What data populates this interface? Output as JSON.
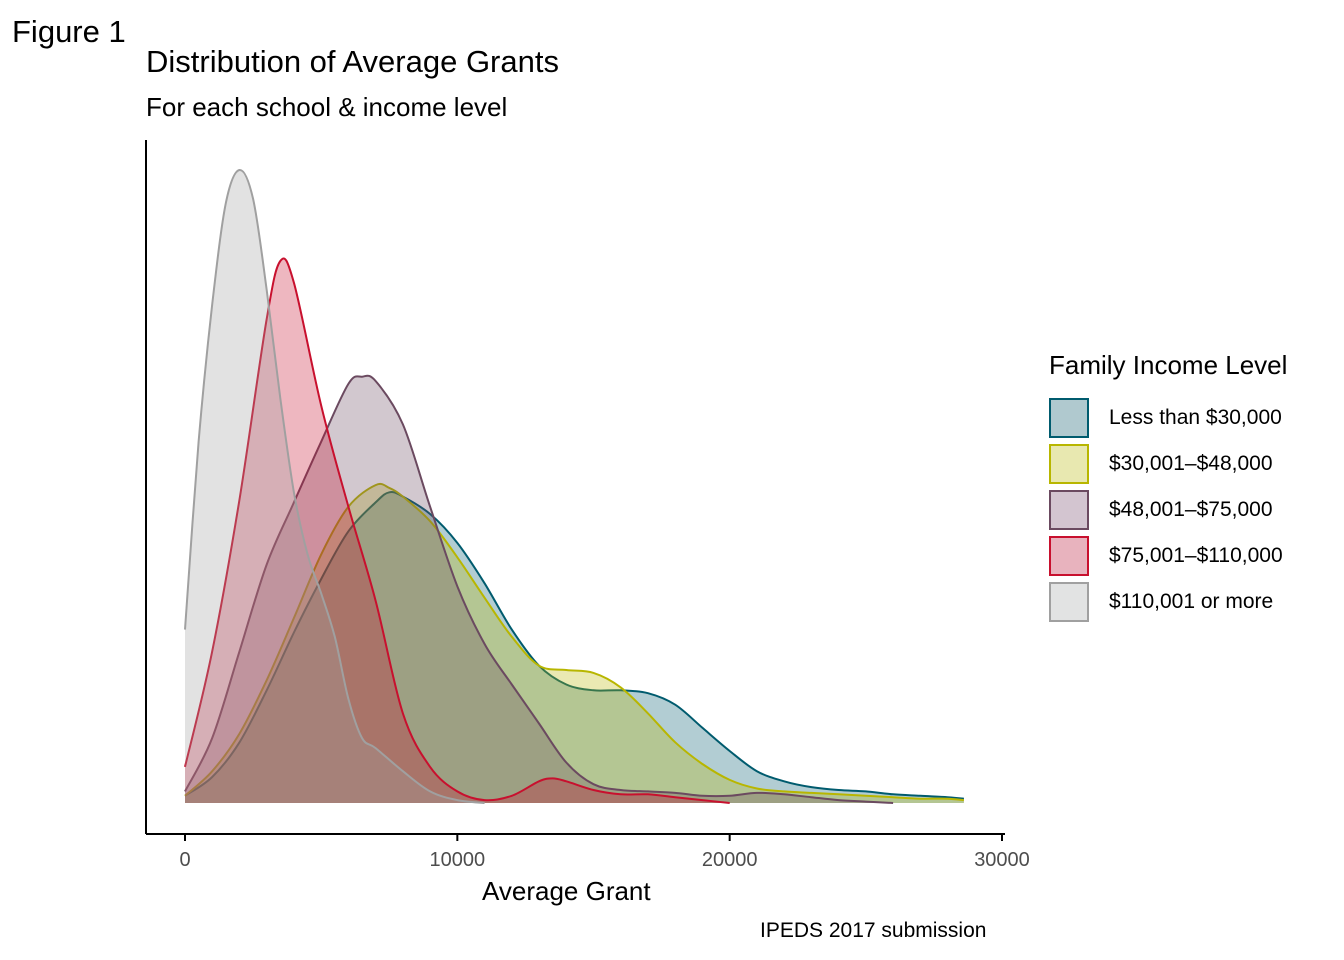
{
  "figure_label": "Figure 1",
  "chart_data": {
    "type": "area",
    "title": "Distribution of Average Grants",
    "subtitle": "For each school & income level",
    "xlabel": "Average Grant",
    "ylabel": "",
    "caption": "IPEDS 2017 submission",
    "xlim": [
      0,
      30000
    ],
    "xticks": [
      "0",
      "10000",
      "20000",
      "30000"
    ],
    "grid": false,
    "legend_title": "Family Income Level",
    "legend_position": "right",
    "series": [
      {
        "name": "Less than $30,000",
        "color": "#005b6e",
        "fill": "#b0c9cf",
        "points": [
          [
            0,
            0.05
          ],
          [
            1000,
            0.18
          ],
          [
            2000,
            0.42
          ],
          [
            3000,
            0.78
          ],
          [
            4000,
            1.18
          ],
          [
            5000,
            1.55
          ],
          [
            6000,
            1.88
          ],
          [
            7000,
            2.08
          ],
          [
            7500,
            2.15
          ],
          [
            8000,
            2.12
          ],
          [
            9000,
            2.0
          ],
          [
            10000,
            1.8
          ],
          [
            11000,
            1.52
          ],
          [
            12000,
            1.2
          ],
          [
            13000,
            0.95
          ],
          [
            14000,
            0.82
          ],
          [
            15000,
            0.78
          ],
          [
            16000,
            0.78
          ],
          [
            17000,
            0.76
          ],
          [
            18000,
            0.68
          ],
          [
            19000,
            0.52
          ],
          [
            20000,
            0.36
          ],
          [
            21000,
            0.22
          ],
          [
            22000,
            0.15
          ],
          [
            23000,
            0.11
          ],
          [
            24000,
            0.09
          ],
          [
            25000,
            0.08
          ],
          [
            26000,
            0.06
          ],
          [
            27000,
            0.05
          ],
          [
            28000,
            0.04
          ],
          [
            28600,
            0.03
          ]
        ]
      },
      {
        "name": "$30,001–$48,000",
        "color": "#b8b600",
        "fill": "#e8e8b0",
        "points": [
          [
            0,
            0.05
          ],
          [
            1000,
            0.22
          ],
          [
            2000,
            0.48
          ],
          [
            3000,
            0.85
          ],
          [
            4000,
            1.28
          ],
          [
            5000,
            1.72
          ],
          [
            6000,
            2.05
          ],
          [
            7000,
            2.2
          ],
          [
            7500,
            2.18
          ],
          [
            8000,
            2.12
          ],
          [
            9000,
            1.95
          ],
          [
            10000,
            1.7
          ],
          [
            11000,
            1.42
          ],
          [
            12000,
            1.15
          ],
          [
            13000,
            0.95
          ],
          [
            14000,
            0.92
          ],
          [
            15000,
            0.9
          ],
          [
            16000,
            0.8
          ],
          [
            17000,
            0.62
          ],
          [
            18000,
            0.42
          ],
          [
            19000,
            0.27
          ],
          [
            20000,
            0.16
          ],
          [
            21000,
            0.1
          ],
          [
            22000,
            0.08
          ],
          [
            23000,
            0.07
          ],
          [
            24000,
            0.06
          ],
          [
            25000,
            0.05
          ],
          [
            26000,
            0.04
          ],
          [
            27000,
            0.03
          ],
          [
            28000,
            0.03
          ],
          [
            28600,
            0.02
          ]
        ]
      },
      {
        "name": "$48,001–$75,000",
        "color": "#6b4a60",
        "fill": "#d3c5d0",
        "points": [
          [
            0,
            0.08
          ],
          [
            1000,
            0.45
          ],
          [
            2000,
            1.05
          ],
          [
            3000,
            1.65
          ],
          [
            4000,
            2.08
          ],
          [
            5000,
            2.5
          ],
          [
            6000,
            2.9
          ],
          [
            6500,
            2.95
          ],
          [
            7000,
            2.92
          ],
          [
            8000,
            2.62
          ],
          [
            9000,
            2.05
          ],
          [
            10000,
            1.5
          ],
          [
            11000,
            1.1
          ],
          [
            12000,
            0.82
          ],
          [
            13000,
            0.55
          ],
          [
            14000,
            0.28
          ],
          [
            15000,
            0.13
          ],
          [
            16000,
            0.09
          ],
          [
            17000,
            0.08
          ],
          [
            18000,
            0.07
          ],
          [
            19000,
            0.05
          ],
          [
            20000,
            0.05
          ],
          [
            21000,
            0.07
          ],
          [
            22000,
            0.06
          ],
          [
            23000,
            0.04
          ],
          [
            24000,
            0.02
          ],
          [
            25000,
            0.01
          ],
          [
            26000,
            0.0
          ]
        ]
      },
      {
        "name": "$75,001–$110,000",
        "color": "#c8102e",
        "fill": "#e8b3be",
        "points": [
          [
            0,
            0.25
          ],
          [
            1000,
            1.05
          ],
          [
            2000,
            2.1
          ],
          [
            3000,
            3.35
          ],
          [
            3500,
            3.75
          ],
          [
            4000,
            3.6
          ],
          [
            5000,
            2.75
          ],
          [
            6000,
            2.05
          ],
          [
            7000,
            1.4
          ],
          [
            8000,
            0.62
          ],
          [
            9000,
            0.25
          ],
          [
            10000,
            0.08
          ],
          [
            11000,
            0.02
          ],
          [
            12000,
            0.05
          ],
          [
            13000,
            0.15
          ],
          [
            13500,
            0.17
          ],
          [
            14000,
            0.15
          ],
          [
            15000,
            0.09
          ],
          [
            16000,
            0.06
          ],
          [
            17000,
            0.06
          ],
          [
            18000,
            0.04
          ],
          [
            19000,
            0.02
          ],
          [
            20000,
            0.0
          ]
        ]
      },
      {
        "name": "$110,001 or more",
        "color": "#a0a0a0",
        "fill": "#e2e3e3",
        "points": [
          [
            0,
            1.2
          ],
          [
            500,
            2.5
          ],
          [
            1000,
            3.45
          ],
          [
            1500,
            4.15
          ],
          [
            2000,
            4.38
          ],
          [
            2500,
            4.18
          ],
          [
            3000,
            3.55
          ],
          [
            3500,
            2.8
          ],
          [
            4000,
            2.15
          ],
          [
            4500,
            1.72
          ],
          [
            5000,
            1.45
          ],
          [
            5500,
            1.15
          ],
          [
            6000,
            0.72
          ],
          [
            6500,
            0.45
          ],
          [
            7000,
            0.38
          ],
          [
            8000,
            0.22
          ],
          [
            9000,
            0.08
          ],
          [
            10000,
            0.02
          ],
          [
            11000,
            0.0
          ]
        ]
      }
    ]
  }
}
